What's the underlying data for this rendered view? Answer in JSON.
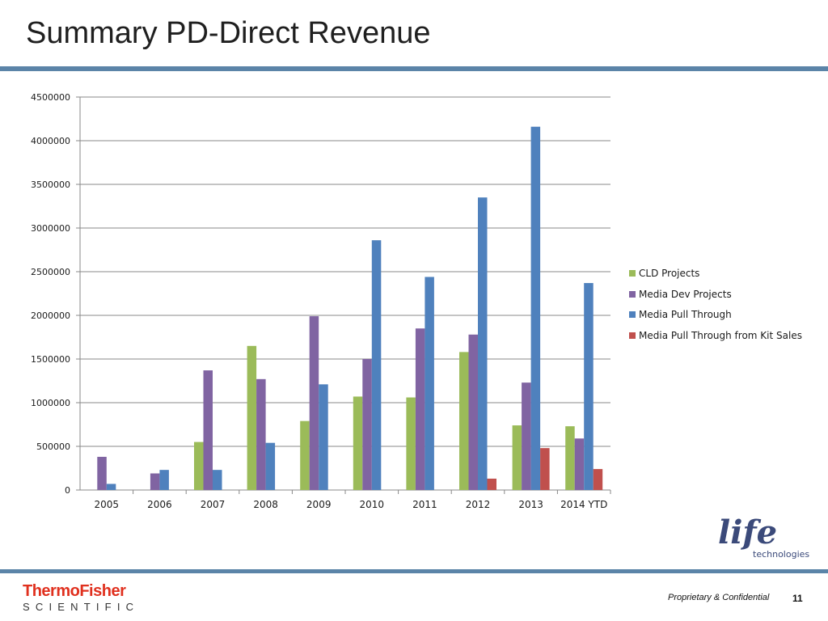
{
  "slide": {
    "title": "Summary PD-Direct Revenue",
    "footer_text": "Proprietary & Confidential",
    "page_number": "11"
  },
  "logos": {
    "life": {
      "word": "life",
      "sub": "technologies",
      "color": "#3b4a7a"
    },
    "thermo_fisher": {
      "name": "ThermoFisher",
      "sub": "SCIENTIFIC",
      "color": "#e0301e"
    }
  },
  "colors": {
    "rule": "#5b84a8",
    "gridline": "#888888"
  },
  "chart_data": {
    "type": "bar",
    "categories": [
      "2005",
      "2006",
      "2007",
      "2008",
      "2009",
      "2010",
      "2011",
      "2012",
      "2013",
      "2014 YTD"
    ],
    "series": [
      {
        "name": "CLD Projects",
        "color": "#9bbb59",
        "values": [
          0,
          0,
          550000,
          1650000,
          790000,
          1070000,
          1060000,
          1580000,
          740000,
          730000
        ]
      },
      {
        "name": "Media Dev Projects",
        "color": "#8064a2",
        "values": [
          380000,
          190000,
          1370000,
          1270000,
          1990000,
          1500000,
          1850000,
          1780000,
          1230000,
          590000
        ]
      },
      {
        "name": "Media Pull Through",
        "color": "#4f81bd",
        "values": [
          70000,
          230000,
          230000,
          540000,
          1210000,
          2860000,
          2440000,
          3350000,
          4160000,
          2370000
        ]
      },
      {
        "name": "Media Pull Through from Kit Sales",
        "color": "#c0504d",
        "values": [
          0,
          0,
          0,
          0,
          0,
          0,
          0,
          130000,
          480000,
          240000
        ]
      }
    ],
    "yticks": [
      "0",
      "500000",
      "1000000",
      "1500000",
      "2000000",
      "2500000",
      "3000000",
      "3500000",
      "4000000",
      "4500000"
    ],
    "ylim": [
      0,
      4500000
    ],
    "grid": true,
    "legend": "right"
  }
}
